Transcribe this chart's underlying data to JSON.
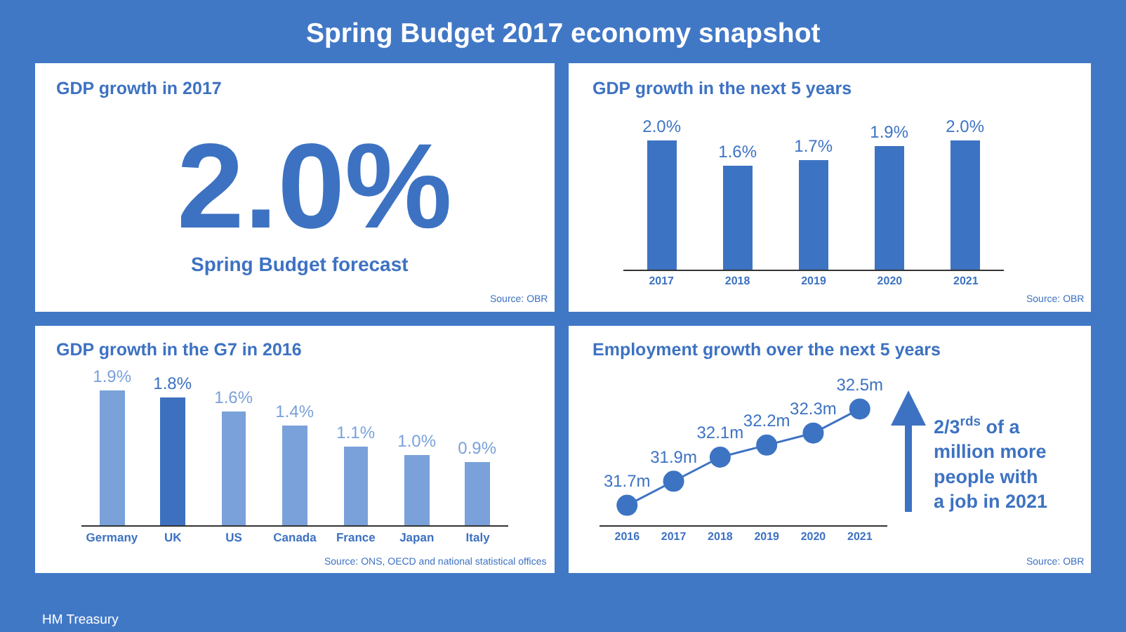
{
  "chart_data": [
    {
      "type": "other",
      "title": "Spring Budget 2017 economy snapshot",
      "annotations": [
        "HM Treasury"
      ]
    },
    {
      "type": "other",
      "title": "GDP growth in 2017",
      "annotations": [
        "2.0%",
        "Spring Budget forecast",
        "Source: OBR"
      ]
    },
    {
      "type": "bar",
      "title": "GDP growth in the next 5 years",
      "categories": [
        "2017",
        "2018",
        "2019",
        "2020",
        "2021"
      ],
      "values": [
        2.0,
        1.6,
        1.7,
        1.9,
        2.0
      ],
      "value_labels": [
        "2.0%",
        "1.6%",
        "1.7%",
        "1.9%",
        "2.0%"
      ],
      "color": "#3d73c3",
      "tick_labels": "x",
      "annotations": [
        "Source: OBR"
      ]
    },
    {
      "type": "bar",
      "title": "GDP growth in the G7 in 2016",
      "categories": [
        "Germany",
        "UK",
        "US",
        "Canada",
        "France",
        "Japan",
        "Italy"
      ],
      "values": [
        1.9,
        1.8,
        1.6,
        1.4,
        1.1,
        1.0,
        0.9
      ],
      "value_labels": [
        "1.9%",
        "1.8%",
        "1.6%",
        "1.4%",
        "1.1%",
        "1.0%",
        "0.9%"
      ],
      "colors": [
        "#7aa1da",
        "#3d71c0",
        "#7aa1da",
        "#7aa1da",
        "#7aa1da",
        "#7aa1da",
        "#7aa1da"
      ],
      "tick_labels": "x",
      "annotations": [
        "Source: ONS, OECD and national statistical offices"
      ]
    },
    {
      "type": "line",
      "title": "Employment growth over the next 5 years",
      "categories": [
        "2016",
        "2017",
        "2018",
        "2019",
        "2020",
        "2021"
      ],
      "values": [
        31.7,
        31.9,
        32.1,
        32.2,
        32.3,
        32.5
      ],
      "value_labels": [
        "31.7m",
        "31.9m",
        "32.1m",
        "32.2m",
        "32.3m",
        "32.5m"
      ],
      "color": "#3d73c3",
      "marker": "circle",
      "line_style": "solid",
      "tick_labels": "x",
      "annotations": [
        "2/3$^{rds}$ of a million more people with a job in 2021",
        "Source: OBR"
      ]
    }
  ]
}
